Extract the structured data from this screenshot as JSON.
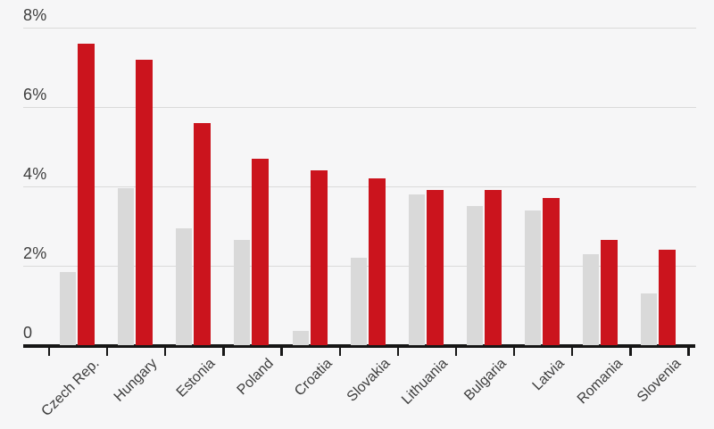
{
  "page": {
    "background_color": "#f6f6f7"
  },
  "chart_data": {
    "type": "bar",
    "title": "",
    "subtitle": "",
    "xlabel": "",
    "ylabel": "",
    "legend": "none",
    "grid": true,
    "categories": [
      "Czech Rep.",
      "Hungary",
      "Estonia",
      "Poland",
      "Croatia",
      "Slovakia",
      "Lithuania",
      "Bulgaria",
      "Latvia",
      "Romania",
      "Slovenia"
    ],
    "series": [
      {
        "name": "gray",
        "color": "#d9d9d9",
        "values": [
          1.85,
          3.95,
          2.95,
          2.65,
          0.35,
          2.2,
          3.8,
          3.5,
          3.4,
          2.3,
          1.3
        ]
      },
      {
        "name": "red",
        "color": "#cb141d",
        "values": [
          7.6,
          7.2,
          5.6,
          4.7,
          4.4,
          4.2,
          3.9,
          3.9,
          3.7,
          2.65,
          2.4
        ]
      }
    ],
    "y_axis": {
      "min": 0,
      "max": 8,
      "unit": "%",
      "ticks": [
        0,
        2,
        4,
        6,
        8
      ],
      "tick_labels": [
        "0",
        "2%",
        "4%",
        "6%",
        "8%"
      ]
    },
    "colors": {
      "axis": "#161616",
      "gridline": "#dadada",
      "text": "#3d3d3d"
    }
  }
}
